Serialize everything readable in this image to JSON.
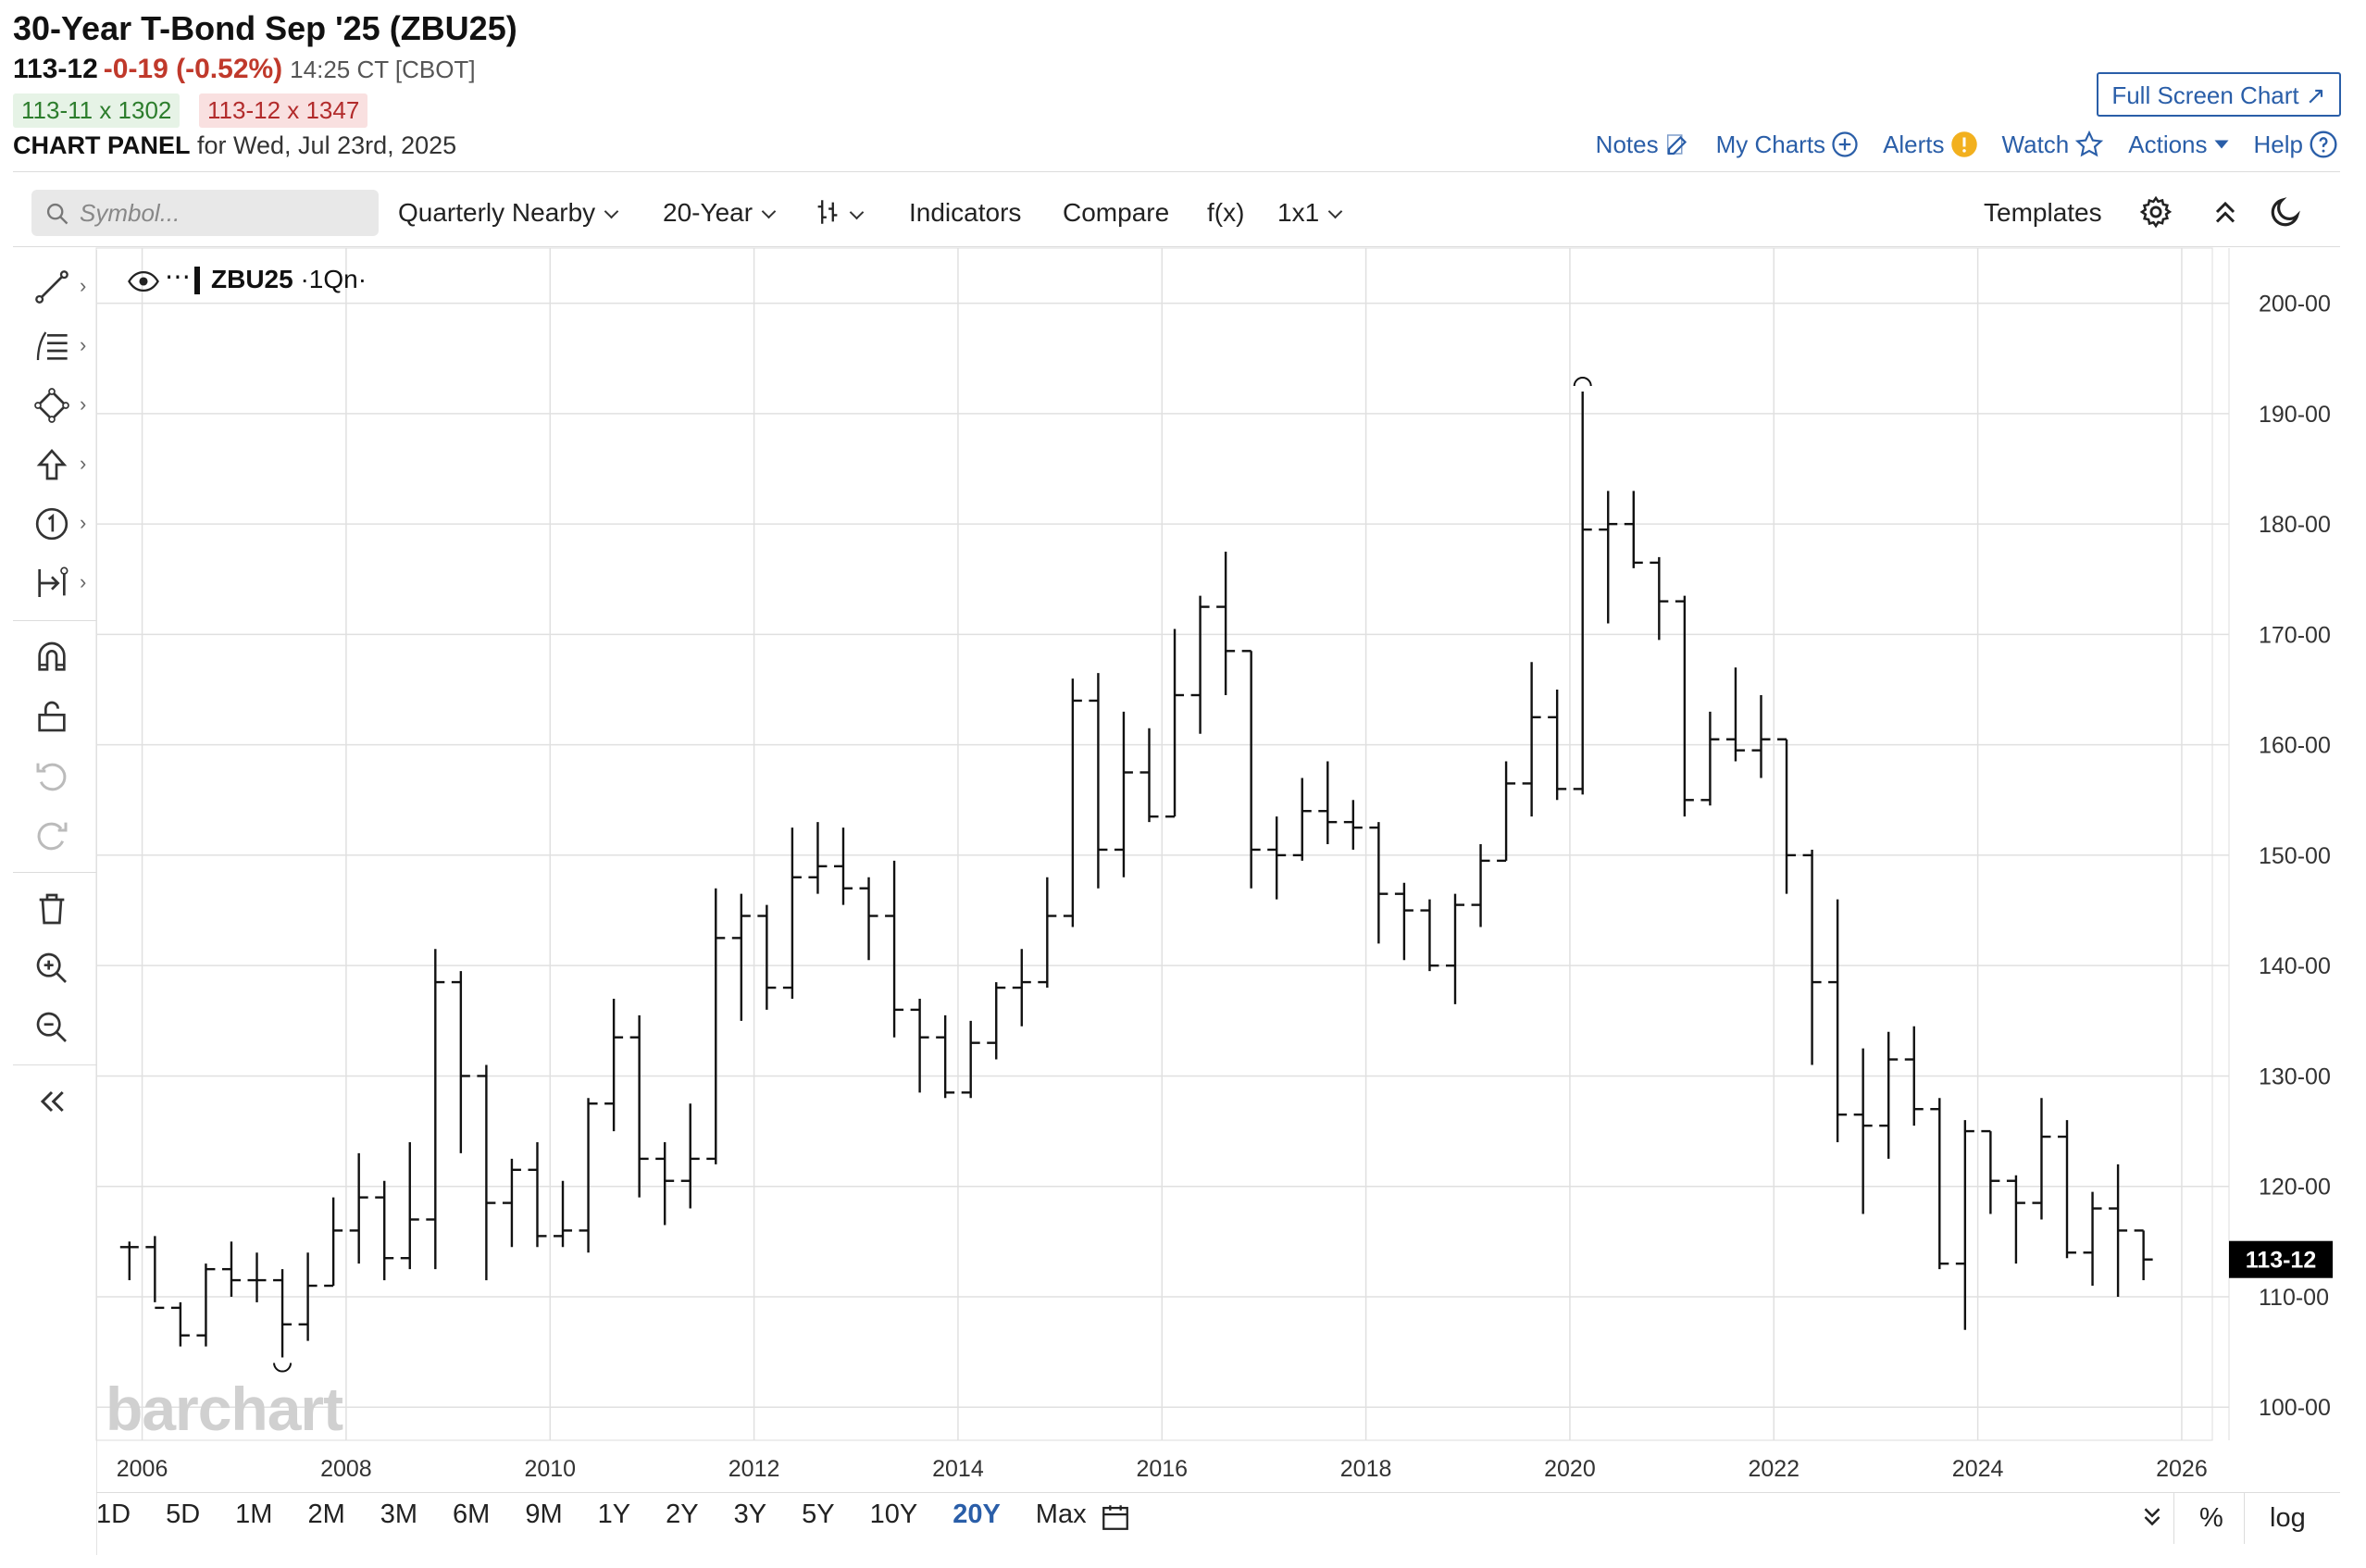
{
  "header": {
    "title": "30-Year T-Bond Sep '25 (ZBU25)",
    "last": "113-12",
    "change": "-0-19 (-0.52%)",
    "time": "14:25 CT [CBOT]",
    "bid": "113-11 x 1302",
    "ask": "113-12 x 1347",
    "panel_label": "CHART PANEL",
    "panel_date": "for Wed, Jul 23rd, 2025"
  },
  "actions": {
    "fullscreen": "Full Screen Chart",
    "notes": "Notes",
    "mycharts": "My Charts",
    "alerts": "Alerts",
    "watch": "Watch",
    "actions": "Actions",
    "help": "Help"
  },
  "toolbar": {
    "search_placeholder": "Symbol...",
    "period": "Quarterly Nearby",
    "range": "20-Year",
    "indicators": "Indicators",
    "compare": "Compare",
    "fx": "f(x)",
    "layout": "1x1",
    "templates": "Templates"
  },
  "legend": {
    "symbol": "ZBU25",
    "interval": "·1Qn·"
  },
  "watermark": "barchart",
  "bottom": {
    "ranges": [
      "1D",
      "5D",
      "1M",
      "2M",
      "3M",
      "6M",
      "9M",
      "1Y",
      "2Y",
      "3Y",
      "5Y",
      "10Y",
      "20Y",
      "Max"
    ],
    "active": "20Y",
    "percent": "%",
    "log": "log"
  },
  "chart_data": {
    "type": "ohlc",
    "title": "30-Year T-Bond Sep '25 (ZBU25)",
    "interval": "Quarterly Nearby",
    "ylim": [
      97,
      205
    ],
    "y_ticks": [
      "100-00",
      "110-00",
      "120-00",
      "130-00",
      "140-00",
      "150-00",
      "160-00",
      "170-00",
      "180-00",
      "190-00",
      "200-00"
    ],
    "x_ticks": [
      "2006",
      "2008",
      "2010",
      "2012",
      "2014",
      "2016",
      "2018",
      "2020",
      "2022",
      "2024",
      "2026"
    ],
    "last_price_label": "113-12",
    "last_price": 113.375,
    "high_marker": 192.0,
    "low_marker": 104.5,
    "colors": {
      "bars": "#111111",
      "grid": "#e0e0e0",
      "accent": "#2a5ea8",
      "down": "#c0392b",
      "up": "#2c7d2c"
    },
    "bars": [
      {
        "date": "2005-Q4",
        "open": 114.5,
        "high": 115.0,
        "low": 111.5,
        "close": 114.5
      },
      {
        "date": "2006-Q1",
        "open": 114.5,
        "high": 115.5,
        "low": 109.5,
        "close": 109.0
      },
      {
        "date": "2006-Q2",
        "open": 109.0,
        "high": 109.5,
        "low": 105.5,
        "close": 106.5
      },
      {
        "date": "2006-Q3",
        "open": 106.5,
        "high": 113.0,
        "low": 105.5,
        "close": 112.5
      },
      {
        "date": "2006-Q4",
        "open": 112.5,
        "high": 115.0,
        "low": 110.0,
        "close": 111.5
      },
      {
        "date": "2007-Q1",
        "open": 111.5,
        "high": 114.0,
        "low": 109.5,
        "close": 111.5
      },
      {
        "date": "2007-Q2",
        "open": 111.5,
        "high": 112.5,
        "low": 104.5,
        "close": 107.5
      },
      {
        "date": "2007-Q3",
        "open": 107.5,
        "high": 114.0,
        "low": 106.0,
        "close": 111.0
      },
      {
        "date": "2007-Q4",
        "open": 111.0,
        "high": 119.0,
        "low": 111.0,
        "close": 116.0
      },
      {
        "date": "2008-Q1",
        "open": 116.0,
        "high": 123.0,
        "low": 113.0,
        "close": 119.0
      },
      {
        "date": "2008-Q2",
        "open": 119.0,
        "high": 120.5,
        "low": 111.5,
        "close": 113.5
      },
      {
        "date": "2008-Q3",
        "open": 113.5,
        "high": 124.0,
        "low": 112.5,
        "close": 117.0
      },
      {
        "date": "2008-Q4",
        "open": 117.0,
        "high": 141.5,
        "low": 112.5,
        "close": 138.5
      },
      {
        "date": "2009-Q1",
        "open": 138.5,
        "high": 139.5,
        "low": 123.0,
        "close": 130.0
      },
      {
        "date": "2009-Q2",
        "open": 130.0,
        "high": 131.0,
        "low": 111.5,
        "close": 118.5
      },
      {
        "date": "2009-Q3",
        "open": 118.5,
        "high": 122.5,
        "low": 114.5,
        "close": 121.5
      },
      {
        "date": "2009-Q4",
        "open": 121.5,
        "high": 124.0,
        "low": 114.5,
        "close": 115.5
      },
      {
        "date": "2010-Q1",
        "open": 115.5,
        "high": 120.5,
        "low": 114.5,
        "close": 116.0
      },
      {
        "date": "2010-Q2",
        "open": 116.0,
        "high": 128.0,
        "low": 114.0,
        "close": 127.5
      },
      {
        "date": "2010-Q3",
        "open": 127.5,
        "high": 137.0,
        "low": 125.0,
        "close": 133.5
      },
      {
        "date": "2010-Q4",
        "open": 133.5,
        "high": 135.5,
        "low": 119.0,
        "close": 122.5
      },
      {
        "date": "2011-Q1",
        "open": 122.5,
        "high": 124.0,
        "low": 116.5,
        "close": 120.5
      },
      {
        "date": "2011-Q2",
        "open": 120.5,
        "high": 127.5,
        "low": 118.0,
        "close": 122.5
      },
      {
        "date": "2011-Q3",
        "open": 122.5,
        "high": 147.0,
        "low": 122.0,
        "close": 142.5
      },
      {
        "date": "2011-Q4",
        "open": 142.5,
        "high": 146.5,
        "low": 135.0,
        "close": 144.5
      },
      {
        "date": "2012-Q1",
        "open": 144.5,
        "high": 145.5,
        "low": 136.0,
        "close": 138.0
      },
      {
        "date": "2012-Q2",
        "open": 138.0,
        "high": 152.5,
        "low": 137.0,
        "close": 148.0
      },
      {
        "date": "2012-Q3",
        "open": 148.0,
        "high": 153.0,
        "low": 146.5,
        "close": 149.0
      },
      {
        "date": "2012-Q4",
        "open": 149.0,
        "high": 152.5,
        "low": 145.5,
        "close": 147.0
      },
      {
        "date": "2013-Q1",
        "open": 147.0,
        "high": 148.0,
        "low": 140.5,
        "close": 144.5
      },
      {
        "date": "2013-Q2",
        "open": 144.5,
        "high": 149.5,
        "low": 133.5,
        "close": 136.0
      },
      {
        "date": "2013-Q3",
        "open": 136.0,
        "high": 137.0,
        "low": 128.5,
        "close": 133.5
      },
      {
        "date": "2013-Q4",
        "open": 133.5,
        "high": 135.5,
        "low": 128.0,
        "close": 128.5
      },
      {
        "date": "2014-Q1",
        "open": 128.5,
        "high": 135.0,
        "low": 128.0,
        "close": 133.0
      },
      {
        "date": "2014-Q2",
        "open": 133.0,
        "high": 138.5,
        "low": 131.5,
        "close": 138.0
      },
      {
        "date": "2014-Q3",
        "open": 138.0,
        "high": 141.5,
        "low": 134.5,
        "close": 138.5
      },
      {
        "date": "2014-Q4",
        "open": 138.5,
        "high": 148.0,
        "low": 138.0,
        "close": 144.5
      },
      {
        "date": "2015-Q1",
        "open": 144.5,
        "high": 166.0,
        "low": 143.5,
        "close": 164.0
      },
      {
        "date": "2015-Q2",
        "open": 164.0,
        "high": 166.5,
        "low": 147.0,
        "close": 150.5
      },
      {
        "date": "2015-Q3",
        "open": 150.5,
        "high": 163.0,
        "low": 148.0,
        "close": 157.5
      },
      {
        "date": "2015-Q4",
        "open": 157.5,
        "high": 161.5,
        "low": 153.0,
        "close": 153.5
      },
      {
        "date": "2016-Q1",
        "open": 153.5,
        "high": 170.5,
        "low": 153.5,
        "close": 164.5
      },
      {
        "date": "2016-Q2",
        "open": 164.5,
        "high": 173.5,
        "low": 161.0,
        "close": 172.5
      },
      {
        "date": "2016-Q3",
        "open": 172.5,
        "high": 177.5,
        "low": 164.5,
        "close": 168.5
      },
      {
        "date": "2016-Q4",
        "open": 168.5,
        "high": 168.5,
        "low": 147.0,
        "close": 150.5
      },
      {
        "date": "2017-Q1",
        "open": 150.5,
        "high": 153.5,
        "low": 146.0,
        "close": 150.0
      },
      {
        "date": "2017-Q2",
        "open": 150.0,
        "high": 157.0,
        "low": 149.5,
        "close": 154.0
      },
      {
        "date": "2017-Q3",
        "open": 154.0,
        "high": 158.5,
        "low": 151.0,
        "close": 153.0
      },
      {
        "date": "2017-Q4",
        "open": 153.0,
        "high": 155.0,
        "low": 150.5,
        "close": 152.5
      },
      {
        "date": "2018-Q1",
        "open": 152.5,
        "high": 153.0,
        "low": 142.0,
        "close": 146.5
      },
      {
        "date": "2018-Q2",
        "open": 146.5,
        "high": 147.5,
        "low": 140.5,
        "close": 145.0
      },
      {
        "date": "2018-Q3",
        "open": 145.0,
        "high": 146.0,
        "low": 139.5,
        "close": 140.0
      },
      {
        "date": "2018-Q4",
        "open": 140.0,
        "high": 146.5,
        "low": 136.5,
        "close": 145.5
      },
      {
        "date": "2019-Q1",
        "open": 145.5,
        "high": 151.0,
        "low": 143.5,
        "close": 149.5
      },
      {
        "date": "2019-Q2",
        "open": 149.5,
        "high": 158.5,
        "low": 149.5,
        "close": 156.5
      },
      {
        "date": "2019-Q3",
        "open": 156.5,
        "high": 167.5,
        "low": 153.5,
        "close": 162.5
      },
      {
        "date": "2019-Q4",
        "open": 162.5,
        "high": 165.0,
        "low": 155.0,
        "close": 156.0
      },
      {
        "date": "2020-Q1",
        "open": 156.0,
        "high": 192.0,
        "low": 155.5,
        "close": 179.5
      },
      {
        "date": "2020-Q2",
        "open": 179.5,
        "high": 183.0,
        "low": 171.0,
        "close": 180.0
      },
      {
        "date": "2020-Q3",
        "open": 180.0,
        "high": 183.0,
        "low": 176.0,
        "close": 176.5
      },
      {
        "date": "2020-Q4",
        "open": 176.5,
        "high": 177.0,
        "low": 169.5,
        "close": 173.0
      },
      {
        "date": "2021-Q1",
        "open": 173.0,
        "high": 173.5,
        "low": 153.5,
        "close": 155.0
      },
      {
        "date": "2021-Q2",
        "open": 155.0,
        "high": 163.0,
        "low": 154.5,
        "close": 160.5
      },
      {
        "date": "2021-Q3",
        "open": 160.5,
        "high": 167.0,
        "low": 158.5,
        "close": 159.5
      },
      {
        "date": "2021-Q4",
        "open": 159.5,
        "high": 164.5,
        "low": 157.0,
        "close": 160.5
      },
      {
        "date": "2022-Q1",
        "open": 160.5,
        "high": 160.5,
        "low": 146.5,
        "close": 150.0
      },
      {
        "date": "2022-Q2",
        "open": 150.0,
        "high": 150.5,
        "low": 131.0,
        "close": 138.5
      },
      {
        "date": "2022-Q3",
        "open": 138.5,
        "high": 146.0,
        "low": 124.0,
        "close": 126.5
      },
      {
        "date": "2022-Q4",
        "open": 126.5,
        "high": 132.5,
        "low": 117.5,
        "close": 125.5
      },
      {
        "date": "2023-Q1",
        "open": 125.5,
        "high": 134.0,
        "low": 122.5,
        "close": 131.5
      },
      {
        "date": "2023-Q2",
        "open": 131.5,
        "high": 134.5,
        "low": 125.5,
        "close": 127.0
      },
      {
        "date": "2023-Q3",
        "open": 127.0,
        "high": 128.0,
        "low": 112.5,
        "close": 113.0
      },
      {
        "date": "2023-Q4",
        "open": 113.0,
        "high": 126.0,
        "low": 107.0,
        "close": 125.0
      },
      {
        "date": "2024-Q1",
        "open": 125.0,
        "high": 125.0,
        "low": 117.5,
        "close": 120.5
      },
      {
        "date": "2024-Q2",
        "open": 120.5,
        "high": 121.0,
        "low": 113.0,
        "close": 118.5
      },
      {
        "date": "2024-Q3",
        "open": 118.5,
        "high": 128.0,
        "low": 117.0,
        "close": 124.5
      },
      {
        "date": "2024-Q4",
        "open": 124.5,
        "high": 126.0,
        "low": 113.5,
        "close": 114.0
      },
      {
        "date": "2025-Q1",
        "open": 114.0,
        "high": 119.5,
        "low": 111.0,
        "close": 118.0
      },
      {
        "date": "2025-Q2",
        "open": 118.0,
        "high": 122.0,
        "low": 110.0,
        "close": 116.0
      },
      {
        "date": "2025-Q3",
        "open": 116.0,
        "high": 116.0,
        "low": 111.5,
        "close": 113.375
      }
    ]
  }
}
